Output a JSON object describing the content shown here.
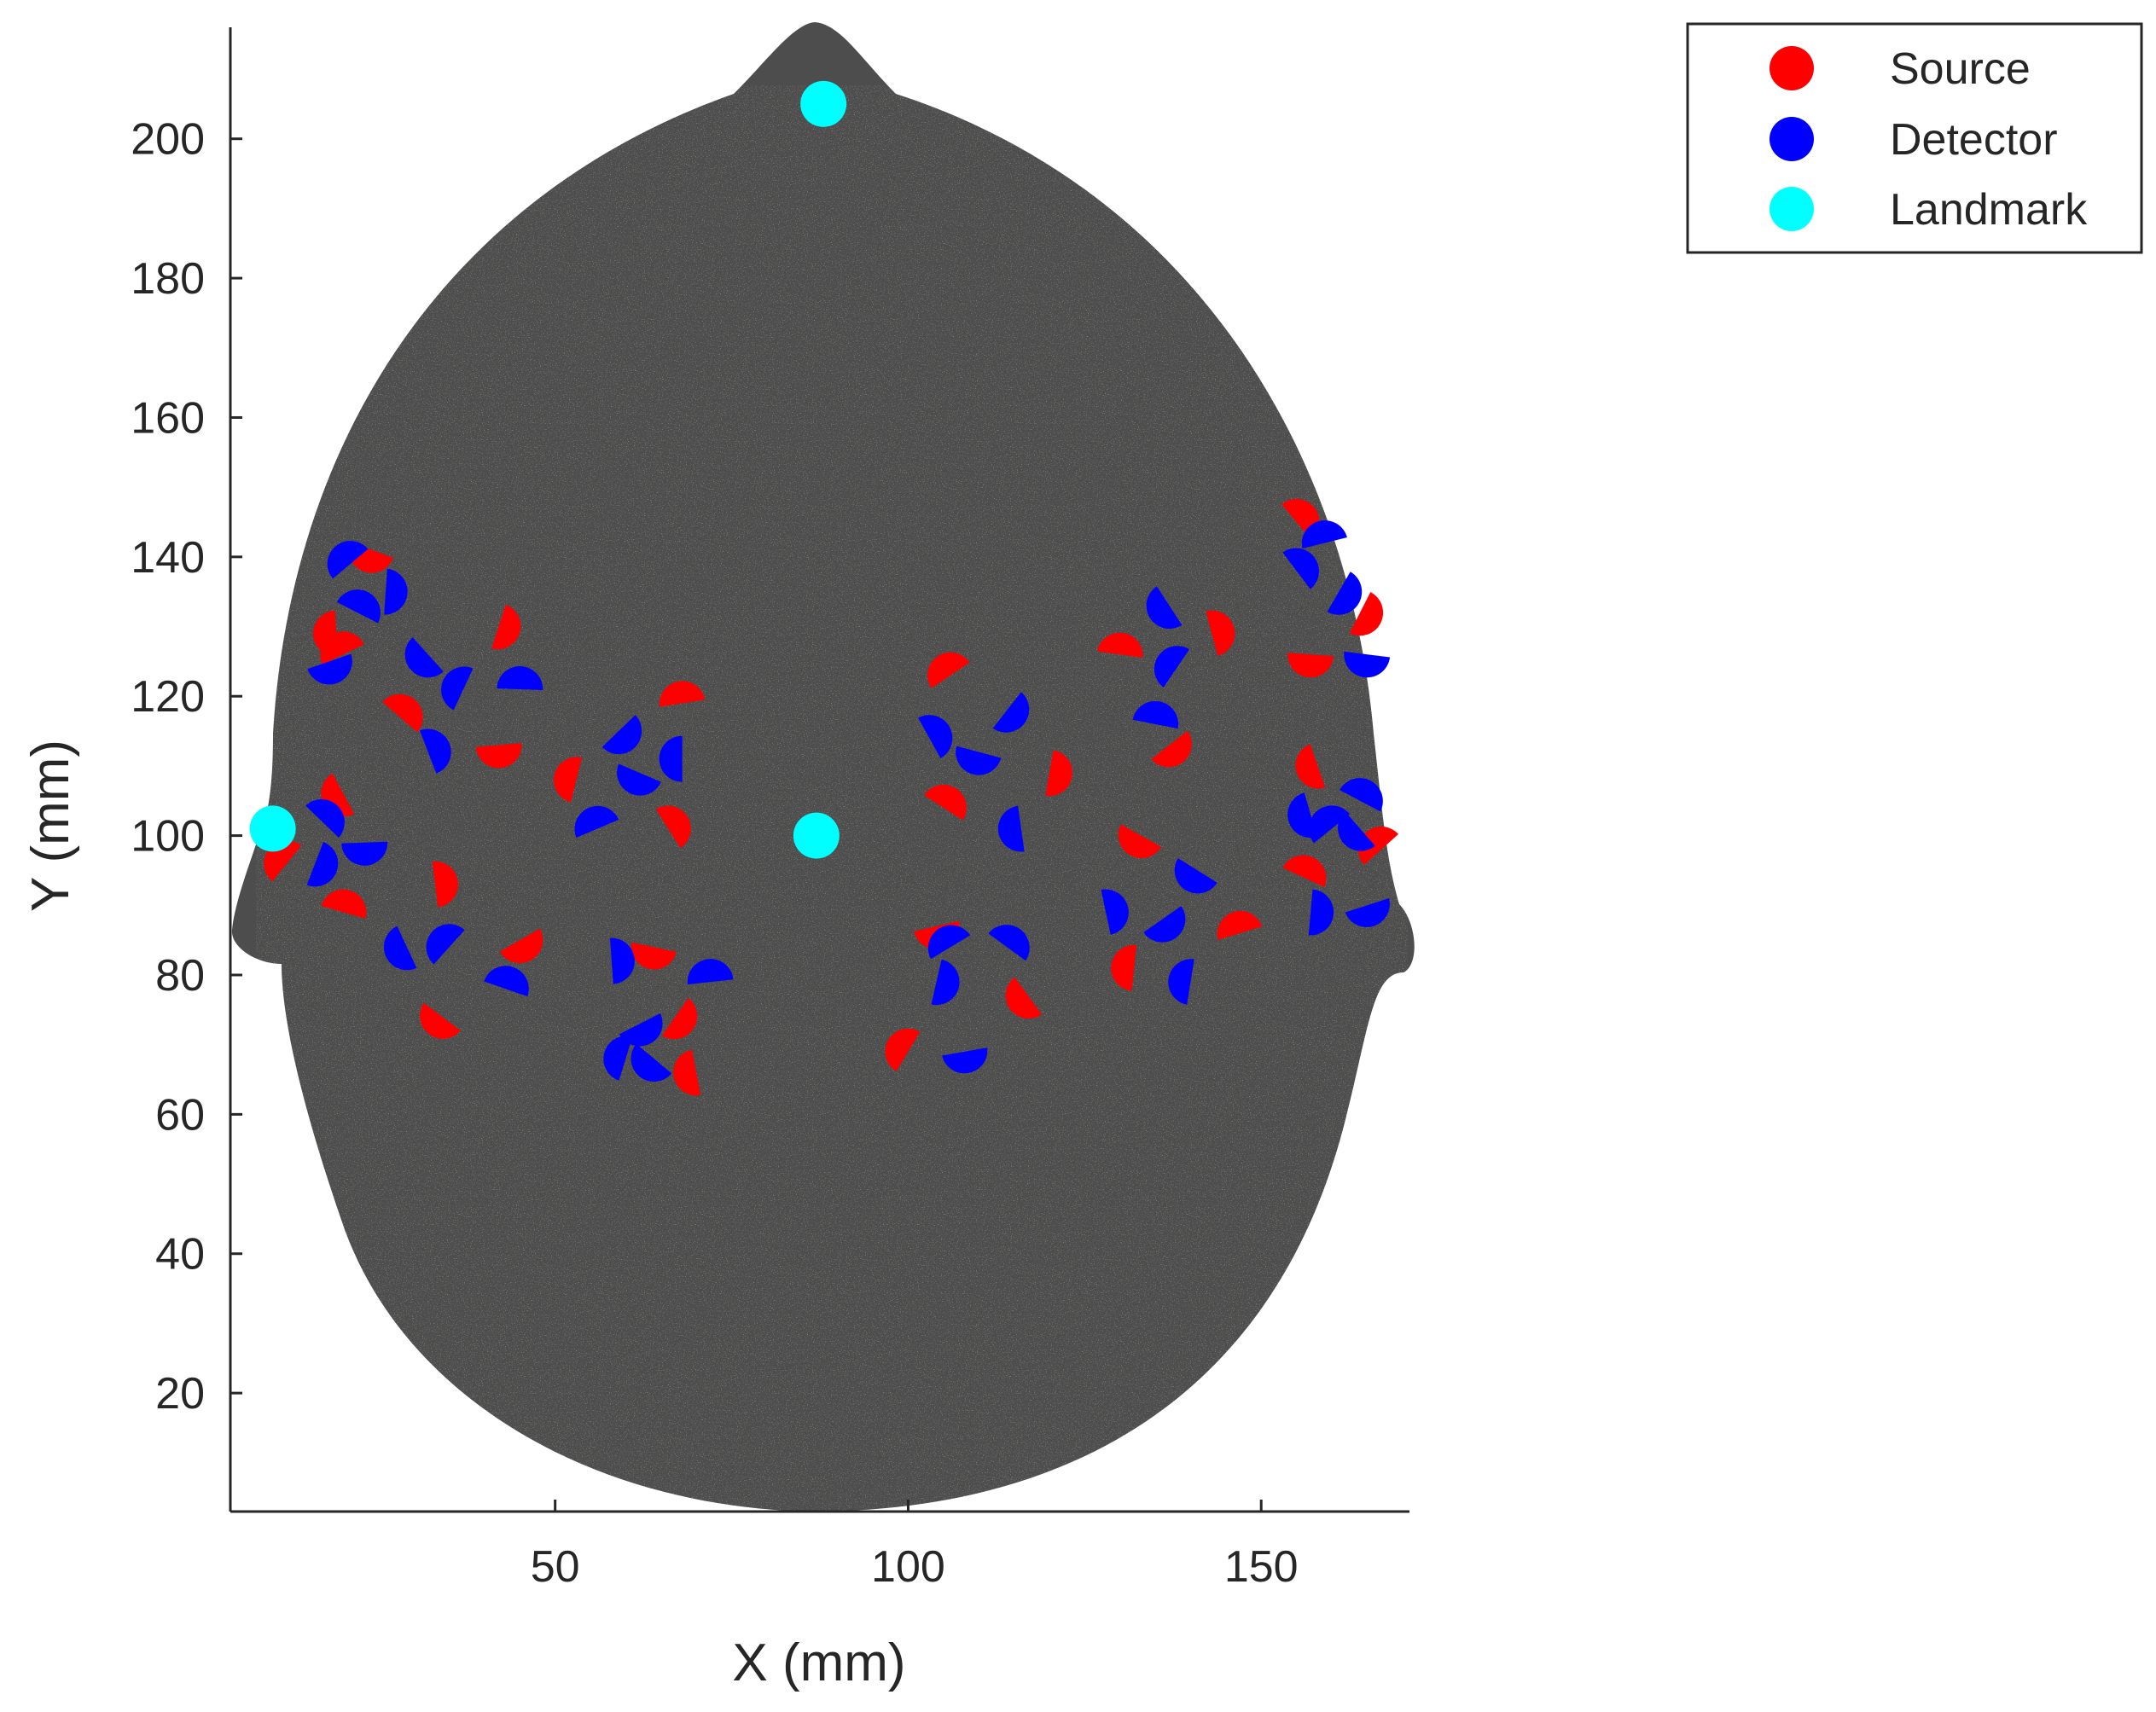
{
  "chart_data": {
    "type": "scatter",
    "title": "",
    "xlabel": "X (mm)",
    "ylabel": "Y (mm)",
    "xlim": [
      4,
      171
    ],
    "ylim": [
      3,
      216
    ],
    "xticks": [
      50,
      100,
      150
    ],
    "yticks": [
      20,
      40,
      60,
      80,
      100,
      120,
      140,
      160,
      180,
      200
    ],
    "xtick_labels": [
      "50",
      "100",
      "150"
    ],
    "ytick_labels": [
      "20",
      "40",
      "60",
      "80",
      "100",
      "120",
      "140",
      "160",
      "180",
      "200"
    ],
    "grid": false,
    "legend_position": "outside top-right",
    "background_shape": "head mesh (top view)",
    "colors": {
      "head_mesh": "#4d4d4d",
      "mesh_speckle": "#c8b99a",
      "source": "#ff0000",
      "detector": "#0000ff",
      "landmark": "#00ffff",
      "axis": "#262626"
    },
    "series": [
      {
        "name": "Source",
        "color": "#ff0000",
        "marker": "half-disc",
        "x": [
          24,
          19,
          20,
          28,
          42,
          42,
          20,
          12,
          20,
          33,
          45,
          34,
          53,
          68,
          66,
          67,
          64,
          70,
          106,
          105,
          120,
          104,
          117,
          100,
          130,
          143,
          137,
          133,
          132,
          147,
          155,
          164,
          157,
          158,
          167,
          156
        ],
        "y": [
          141,
          129,
          126,
          117,
          130,
          113,
          106,
          96,
          89,
          93,
          85,
          74,
          108,
          119,
          101,
          74,
          84,
          66,
          123,
          104,
          109,
          87,
          77,
          69,
          126,
          129,
          113,
          100,
          81,
          86,
          145,
          132,
          126,
          110,
          98,
          94
        ]
      },
      {
        "name": "Detector",
        "color": "#0000ff",
        "marker": "half-disc",
        "x": [
          21,
          22,
          26,
          18,
          32,
          37,
          45,
          32,
          59,
          62,
          68,
          56,
          17,
          16,
          23,
          29,
          35,
          43,
          58,
          62,
          64,
          60,
          72,
          103,
          114,
          110,
          116,
          106,
          114,
          104,
          108,
          137,
          138,
          135,
          128,
          136,
          141,
          140,
          159,
          155,
          161,
          165,
          157,
          160,
          164,
          157,
          165,
          164
        ],
        "y": [
          139,
          132,
          135,
          125,
          126,
          121,
          121,
          112,
          115,
          109,
          111,
          101,
          102,
          96,
          99,
          84,
          84,
          78,
          82,
          73,
          68,
          68,
          79,
          114,
          118,
          112,
          101,
          84,
          84,
          79,
          69,
          133,
          124,
          116,
          89,
          88,
          95,
          79,
          142,
          138,
          135,
          126,
          103,
          101,
          105,
          89,
          90,
          101
        ]
      },
      {
        "name": "Landmark",
        "color": "#00ffff",
        "marker": "disc",
        "x": [
          88,
          10,
          87
        ],
        "y": [
          205,
          101,
          100
        ]
      }
    ]
  },
  "legend": {
    "items": [
      {
        "label": "Source",
        "color": "#ff0000"
      },
      {
        "label": "Detector",
        "color": "#0000ff"
      },
      {
        "label": "Landmark",
        "color": "#00ffff"
      }
    ]
  }
}
